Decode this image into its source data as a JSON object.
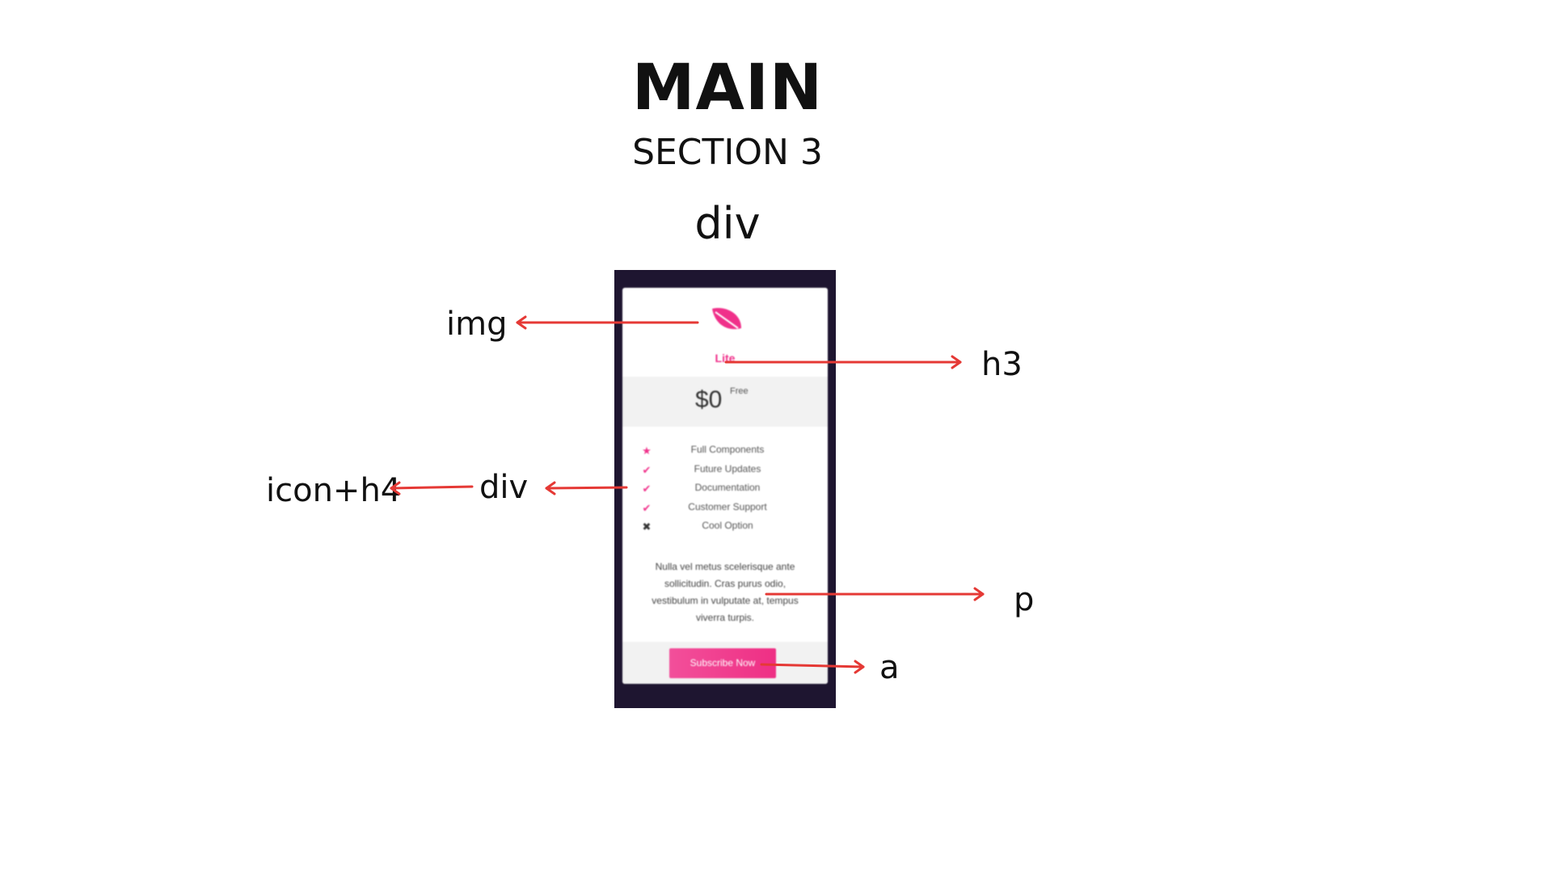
{
  "heading": {
    "title": "MAIN",
    "subtitle": "SECTION 3",
    "container_label": "div"
  },
  "annotations": {
    "img": "img",
    "h3": "h3",
    "div": "div",
    "icon_h4": "icon+h4",
    "p": "p",
    "a": "a"
  },
  "card": {
    "plan_name": "Lite",
    "price": "$0",
    "price_note": "Free",
    "features": [
      {
        "icon": "star-icon",
        "glyph": "★",
        "text": "Full Components",
        "color": "#f0308a"
      },
      {
        "icon": "check-icon",
        "glyph": "✔",
        "text": "Future Updates",
        "color": "#f0308a"
      },
      {
        "icon": "check-icon",
        "glyph": "✔",
        "text": "Documentation",
        "color": "#f0308a"
      },
      {
        "icon": "check-icon",
        "glyph": "✔",
        "text": "Customer Support",
        "color": "#f0308a"
      },
      {
        "icon": "cross-icon",
        "glyph": "✖",
        "text": "Cool Option",
        "color": "#333333"
      }
    ],
    "description": "Nulla vel metus scelerisque ante sollicitudin. Cras purus odio, vestibulum in vulputate at, tempus viverra turpis.",
    "button_label": "Subscribe Now"
  },
  "colors": {
    "accent": "#f0308a",
    "arrow": "#e53935",
    "frame": "#1e1530"
  }
}
